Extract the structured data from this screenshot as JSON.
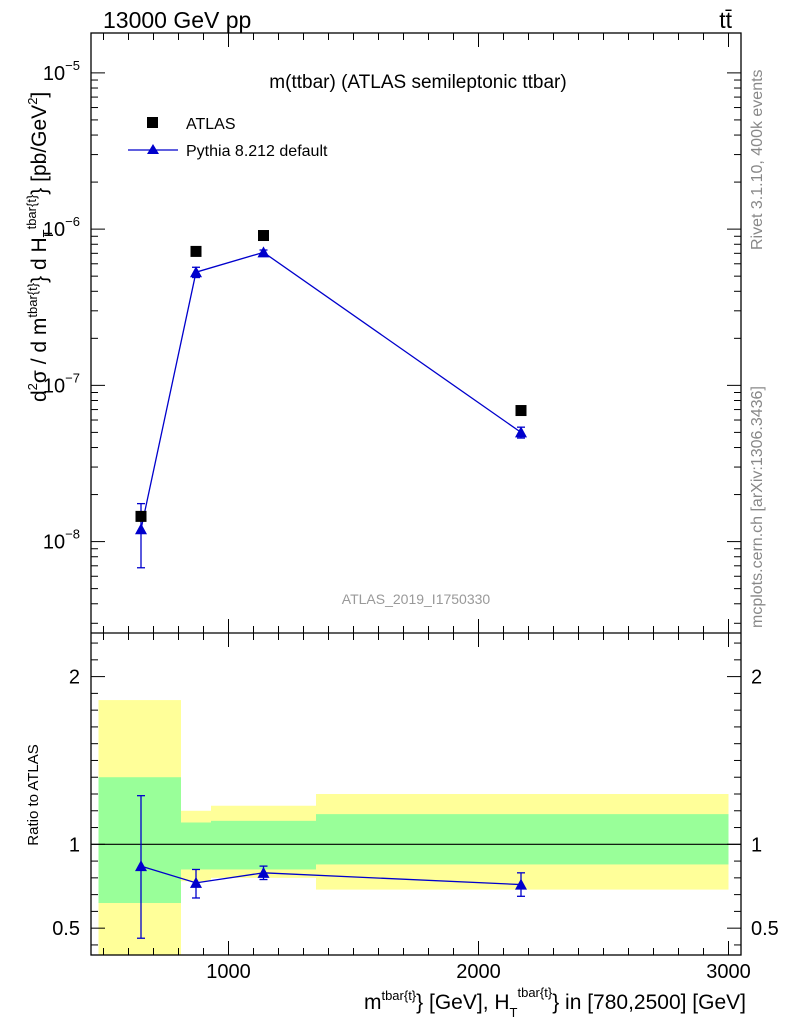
{
  "header": {
    "left": "13000 GeV pp",
    "right": "tt̄"
  },
  "side": {
    "rivet": "Rivet 3.1.10,  400k events",
    "mcplots": "mcplots.cern.ch [arXiv:1306.3436]"
  },
  "chart_data": {
    "type": "scatter",
    "title": "m(ttbar) (ATLAS semileptonic ttbar)",
    "analysis_label": "ATLAS_2019_I1750330",
    "xlabel": "m^{tbar{t}} [GeV], H_T^{tbar{t}} in [780,2500] [GeV]",
    "xlabel_parts": {
      "m": "m",
      "sup1": "tbar{t}",
      "mid": "} [GeV], H",
      "sub": "T",
      "sup2": "tbar{t}",
      "tail": "} in [780,2500] [GeV]"
    },
    "ylabel": "d²σ / d m^{tbar{t}} d H_T^{tbar{t}} [pb/GeV²]",
    "ylabel_parts": {
      "d2s": "d",
      "sup2": "2",
      "sigma": "σ / d m",
      "sup1": "tbar{t}",
      "mid": "} d H",
      "sub": "T",
      "sup3": "tbar{t}",
      "tail": "} [pb/GeV",
      "unitsup": "2",
      "close": "]"
    },
    "xlim": [
      450,
      3050
    ],
    "main_ylim": [
      2.6e-09,
      1.8e-05
    ],
    "main_yscale": "log",
    "main_yticks": [
      {
        "value": 1e-08,
        "label": "10",
        "exp": "−8"
      },
      {
        "value": 1e-07,
        "label": "10",
        "exp": "−7"
      },
      {
        "value": 1e-06,
        "label": "10",
        "exp": "−6"
      },
      {
        "value": 1e-05,
        "label": "10",
        "exp": "−5"
      }
    ],
    "xticks": [
      {
        "value": 1000,
        "label": "1000"
      },
      {
        "value": 2000,
        "label": "2000"
      },
      {
        "value": 3000,
        "label": "3000"
      }
    ],
    "legend": [
      {
        "name": "ATLAS",
        "marker": "square",
        "color": "#000000"
      },
      {
        "name": "Pythia 8.212 default",
        "marker": "triangle",
        "color": "#0000cc"
      }
    ],
    "series": [
      {
        "name": "ATLAS",
        "x": [
          650,
          870,
          1140,
          2170
        ],
        "y": [
          1.45e-08,
          7.2e-07,
          9.1e-07,
          6.9e-08
        ]
      },
      {
        "name": "Pythia 8.212 default",
        "x": [
          650,
          870,
          1140,
          2170
        ],
        "y": [
          1.2e-08,
          5.3e-07,
          7.1e-07,
          5e-08
        ],
        "yerr_low": [
          5.2e-09,
          4e-08,
          2.5e-08,
          4e-09
        ],
        "yerr_high": [
          5.5e-09,
          4e-08,
          2.5e-08,
          4e-09
        ]
      }
    ],
    "ratio": {
      "ylabel": "Ratio to ATLAS",
      "ylim": [
        0.34,
        2.26
      ],
      "yticks": [
        {
          "value": 0.5,
          "label": "0.5"
        },
        {
          "value": 1,
          "label": "1"
        },
        {
          "value": 2,
          "label": "2"
        }
      ],
      "bands": [
        {
          "x0": 480,
          "x1": 810,
          "inner": [
            0.65,
            1.4
          ],
          "outer": [
            0.34,
            1.86
          ]
        },
        {
          "x0": 810,
          "x1": 930,
          "inner": [
            0.85,
            1.13
          ],
          "outer": [
            0.78,
            1.2
          ]
        },
        {
          "x0": 930,
          "x1": 1350,
          "inner": [
            0.85,
            1.14
          ],
          "outer": [
            0.8,
            1.23
          ]
        },
        {
          "x0": 1350,
          "x1": 3000,
          "inner": [
            0.88,
            1.18
          ],
          "outer": [
            0.73,
            1.3
          ]
        }
      ],
      "pythia": {
        "x": [
          650,
          870,
          1140,
          2170
        ],
        "y": [
          0.87,
          0.77,
          0.83,
          0.76
        ],
        "yerr_low": [
          0.43,
          0.09,
          0.04,
          0.07
        ],
        "yerr_high": [
          0.42,
          0.08,
          0.04,
          0.07
        ]
      }
    }
  }
}
